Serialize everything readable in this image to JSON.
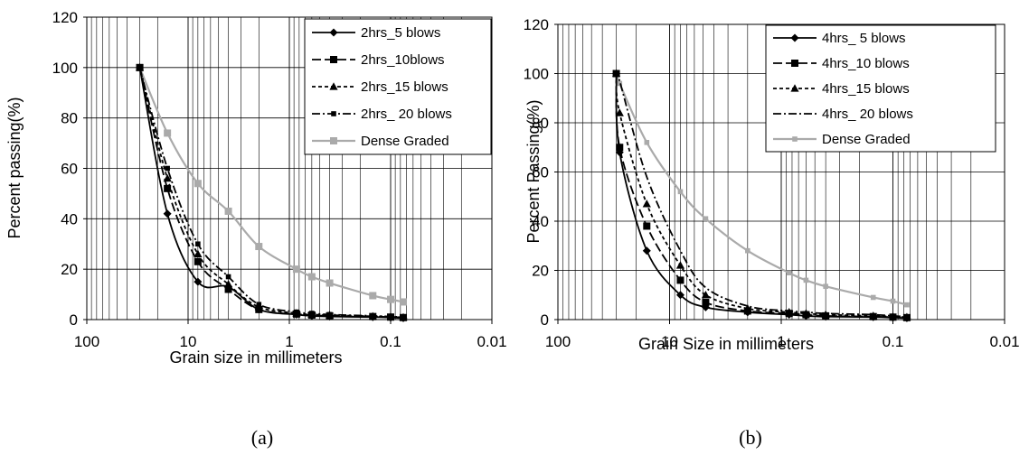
{
  "chart_data": [
    {
      "type": "line",
      "caption": "(a)",
      "xlabel": "Grain size in millimeters",
      "ylabel": "Percent passing(%)",
      "xscale": "log",
      "xaxis_reversed": true,
      "xlim": [
        100,
        0.01
      ],
      "ylim": [
        0,
        120
      ],
      "x_tick_labels": [
        "100",
        "10",
        "1",
        "0.1",
        "0.01"
      ],
      "y_tick_labels": [
        "0",
        "20",
        "40",
        "60",
        "80",
        "100",
        "120"
      ],
      "grid": "on",
      "legend_position": "top-right",
      "sieve_sizes": [
        30,
        16,
        8,
        4,
        2,
        0.85,
        0.6,
        0.4,
        0.15,
        0.1,
        0.075
      ],
      "series": [
        {
          "name": "2hrs_5 blows",
          "marker": "diamond",
          "color": "#000000",
          "dash": "solid",
          "values": [
            100,
            42,
            15,
            13,
            4,
            2,
            1.5,
            1.2,
            1,
            0.8,
            0.6
          ]
        },
        {
          "name": "2hrs_10blows",
          "marker": "square",
          "color": "#000000",
          "dash": "long-dash",
          "values": [
            100,
            52,
            23,
            12,
            4,
            2.2,
            1.8,
            1.5,
            1.2,
            1,
            0.8
          ]
        },
        {
          "name": "2hrs_15 blows",
          "marker": "triangle",
          "color": "#000000",
          "dash": "short-dash",
          "values": [
            100,
            56,
            26,
            14,
            5,
            2.5,
            2,
            1.8,
            1.3,
            1.1,
            0.9
          ]
        },
        {
          "name": "2hrs_ 20 blows",
          "marker": "small-square",
          "color": "#000000",
          "dash": "dash-dot",
          "values": [
            100,
            60,
            30,
            17,
            6,
            3,
            2.5,
            2,
            1.5,
            1.2,
            1
          ]
        },
        {
          "name": "Dense Graded",
          "marker": "square",
          "color": "#aaaaaa",
          "dash": "solid",
          "values": [
            100,
            74,
            54,
            43,
            29,
            20,
            17,
            14.5,
            9.5,
            8,
            7
          ]
        }
      ]
    },
    {
      "type": "line",
      "caption": "(b)",
      "xlabel": "Grain Size in millimeters",
      "ylabel": "Percent Passing(%)",
      "xscale": "log",
      "xaxis_reversed": true,
      "xlim": [
        100,
        0.01
      ],
      "ylim": [
        0,
        120
      ],
      "x_tick_labels": [
        "100",
        "10",
        "1",
        "0.1",
        "0.01"
      ],
      "y_tick_labels": [
        "0",
        "20",
        "40",
        "60",
        "80",
        "100",
        "120"
      ],
      "grid": "on",
      "legend_position": "top-right",
      "sieve_sizes": [
        30,
        28,
        16,
        8,
        4.75,
        2,
        0.85,
        0.6,
        0.4,
        0.15,
        0.1,
        0.075
      ],
      "series": [
        {
          "name": "4hrs_ 5 blows",
          "marker": "diamond",
          "color": "#000000",
          "dash": "solid",
          "values": [
            100,
            68,
            28,
            10,
            5,
            3,
            2,
            1.5,
            1.2,
            1,
            0.8,
            0.6
          ]
        },
        {
          "name": "4hrs_10 blows",
          "marker": "square",
          "color": "#000000",
          "dash": "long-dash",
          "values": [
            100,
            70,
            38,
            16,
            7,
            3.5,
            2.5,
            2,
            1.5,
            1.2,
            1,
            0.8
          ]
        },
        {
          "name": "4hrs_15 blows",
          "marker": "triangle",
          "color": "#000000",
          "dash": "short-dash",
          "values": [
            100,
            84,
            47,
            22,
            10,
            4.5,
            3,
            2.5,
            2,
            1.5,
            1.2,
            1
          ]
        },
        {
          "name": "4hrs_ 20 blows",
          "marker": "none",
          "color": "#000000",
          "dash": "dash-dot",
          "values": [
            100,
            97,
            58,
            28,
            13,
            5.5,
            3.5,
            3,
            2.5,
            2,
            1.5,
            1.2
          ]
        },
        {
          "name": "Dense Graded",
          "marker": "small-square",
          "color": "#aaaaaa",
          "dash": "solid",
          "values": [
            100,
            96,
            72,
            52,
            41,
            28,
            19,
            16,
            13.5,
            9,
            7.5,
            6
          ]
        }
      ]
    }
  ]
}
